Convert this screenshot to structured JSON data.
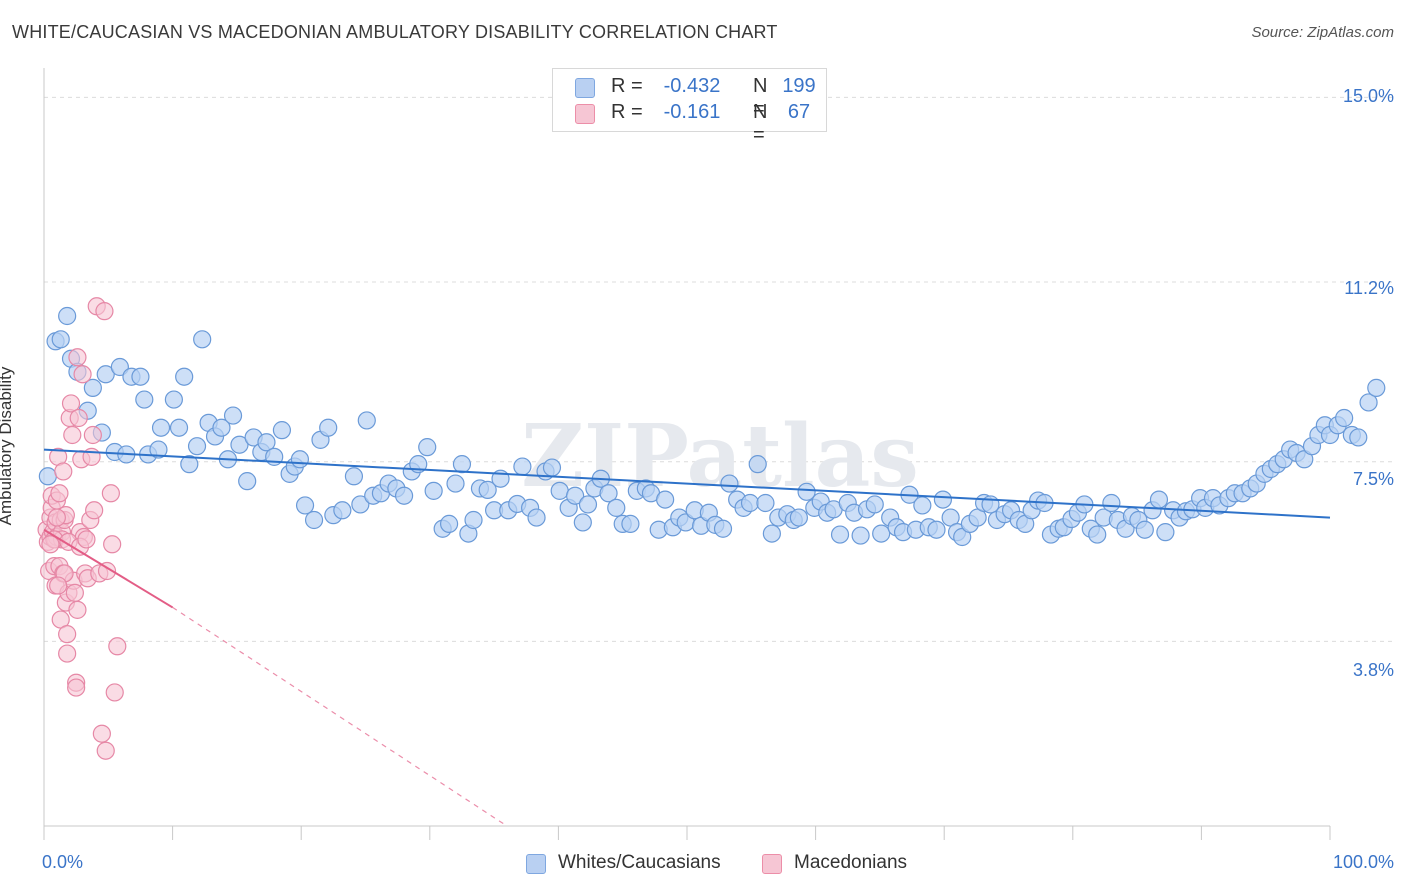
{
  "title": "WHITE/CAUCASIAN VS MACEDONIAN AMBULATORY DISABILITY CORRELATION CHART",
  "source": "Source: ZipAtlas.com",
  "legend": {
    "r_label": "R =",
    "n_label": "N =",
    "rows": [
      {
        "r": "-0.432",
        "n": "199",
        "color": "#7fa7e0",
        "fill": "#b9d0f2"
      },
      {
        "r": "-0.161",
        "n": "67",
        "color": "#ec8ea8",
        "fill": "#f6c6d4"
      }
    ]
  },
  "watermark": "ZIPatlas",
  "colors": {
    "blue": "#6a9ad8",
    "blue_fill": "#b8d1f3",
    "pink": "#e688a6",
    "pink_fill": "#f7c4d3",
    "blue_line": "#2e72c9",
    "pink_line": "#e35d86",
    "tick": "#3a74c8"
  },
  "chart_data": {
    "type": "scatter",
    "title": "WHITE/CAUCASIAN VS MACEDONIAN AMBULATORY DISABILITY CORRELATION CHART",
    "ylabel": "Ambulatory Disability",
    "xlabel": "",
    "xlim": [
      0,
      100
    ],
    "ylim": [
      0,
      15.4
    ],
    "x_ticks": [
      "0.0%",
      "100.0%"
    ],
    "y_ticks": [
      {
        "value": 3.8,
        "label": "3.8%"
      },
      {
        "value": 7.5,
        "label": "7.5%"
      },
      {
        "value": 11.2,
        "label": "11.2%"
      },
      {
        "value": 15.0,
        "label": "15.0%"
      }
    ],
    "grid": true,
    "legend_position": "bottom",
    "series": [
      {
        "name": "Whites/Caucasians",
        "r": -0.432,
        "n": 199,
        "trend": {
          "x": [
            0,
            100
          ],
          "y": [
            7.75,
            6.35
          ]
        },
        "points": [
          [
            0.3,
            7.2
          ],
          [
            0.9,
            9.98
          ],
          [
            1.3,
            10.02
          ],
          [
            1.8,
            10.5
          ],
          [
            2.1,
            9.62
          ],
          [
            2.6,
            9.35
          ],
          [
            3.4,
            8.55
          ],
          [
            3.8,
            9.02
          ],
          [
            4.5,
            8.1
          ],
          [
            4.8,
            9.3
          ],
          [
            5.5,
            7.7
          ],
          [
            5.9,
            9.45
          ],
          [
            6.4,
            7.65
          ],
          [
            6.8,
            9.25
          ],
          [
            7.5,
            9.25
          ],
          [
            7.8,
            8.78
          ],
          [
            8.1,
            7.65
          ],
          [
            8.9,
            7.75
          ],
          [
            9.1,
            8.2
          ],
          [
            10.1,
            8.78
          ],
          [
            10.5,
            8.2
          ],
          [
            10.9,
            9.25
          ],
          [
            11.3,
            7.45
          ],
          [
            11.9,
            7.82
          ],
          [
            12.3,
            10.02
          ],
          [
            12.8,
            8.3
          ],
          [
            13.3,
            8.02
          ],
          [
            13.8,
            8.2
          ],
          [
            14.3,
            7.55
          ],
          [
            14.7,
            8.45
          ],
          [
            15.2,
            7.85
          ],
          [
            15.8,
            7.1
          ],
          [
            16.3,
            8.0
          ],
          [
            16.9,
            7.7
          ],
          [
            17.3,
            7.9
          ],
          [
            17.9,
            7.6
          ],
          [
            18.5,
            8.15
          ],
          [
            19.1,
            7.25
          ],
          [
            19.5,
            7.4
          ],
          [
            19.9,
            7.55
          ],
          [
            20.3,
            6.6
          ],
          [
            21.0,
            6.3
          ],
          [
            21.5,
            7.95
          ],
          [
            22.1,
            8.2
          ],
          [
            22.5,
            6.4
          ],
          [
            23.2,
            6.5
          ],
          [
            24.1,
            7.2
          ],
          [
            24.6,
            6.62
          ],
          [
            25.1,
            8.35
          ],
          [
            25.6,
            6.8
          ],
          [
            26.2,
            6.85
          ],
          [
            26.8,
            7.05
          ],
          [
            27.4,
            6.95
          ],
          [
            28.0,
            6.8
          ],
          [
            28.6,
            7.3
          ],
          [
            29.1,
            7.45
          ],
          [
            29.8,
            7.8
          ],
          [
            30.3,
            6.9
          ],
          [
            31.0,
            6.12
          ],
          [
            31.5,
            6.22
          ],
          [
            32.0,
            7.05
          ],
          [
            32.5,
            7.45
          ],
          [
            33.0,
            6.02
          ],
          [
            33.4,
            6.3
          ],
          [
            33.9,
            6.95
          ],
          [
            34.5,
            6.92
          ],
          [
            35.0,
            6.5
          ],
          [
            35.5,
            7.15
          ],
          [
            36.1,
            6.5
          ],
          [
            36.8,
            6.63
          ],
          [
            37.2,
            7.4
          ],
          [
            37.8,
            6.55
          ],
          [
            38.3,
            6.35
          ],
          [
            39.0,
            7.3
          ],
          [
            39.5,
            7.38
          ],
          [
            40.1,
            6.9
          ],
          [
            40.8,
            6.55
          ],
          [
            41.3,
            6.8
          ],
          [
            41.9,
            6.25
          ],
          [
            42.3,
            6.62
          ],
          [
            42.8,
            6.95
          ],
          [
            43.3,
            7.15
          ],
          [
            43.9,
            6.85
          ],
          [
            44.5,
            6.55
          ],
          [
            45.0,
            6.22
          ],
          [
            45.6,
            6.22
          ],
          [
            46.1,
            6.9
          ],
          [
            46.8,
            6.95
          ],
          [
            47.2,
            6.85
          ],
          [
            47.8,
            6.1
          ],
          [
            48.3,
            6.72
          ],
          [
            48.9,
            6.15
          ],
          [
            49.4,
            6.35
          ],
          [
            49.9,
            6.25
          ],
          [
            50.6,
            6.5
          ],
          [
            51.1,
            6.18
          ],
          [
            51.7,
            6.45
          ],
          [
            52.2,
            6.2
          ],
          [
            52.8,
            6.12
          ],
          [
            53.3,
            7.05
          ],
          [
            53.9,
            6.72
          ],
          [
            54.4,
            6.55
          ],
          [
            54.9,
            6.65
          ],
          [
            55.5,
            7.45
          ],
          [
            56.1,
            6.65
          ],
          [
            56.6,
            6.02
          ],
          [
            57.1,
            6.35
          ],
          [
            57.8,
            6.42
          ],
          [
            58.3,
            6.3
          ],
          [
            58.7,
            6.35
          ],
          [
            59.3,
            6.88
          ],
          [
            59.9,
            6.55
          ],
          [
            60.4,
            6.68
          ],
          [
            60.9,
            6.45
          ],
          [
            61.4,
            6.52
          ],
          [
            61.9,
            6.0
          ],
          [
            62.5,
            6.65
          ],
          [
            63.0,
            6.45
          ],
          [
            63.5,
            5.98
          ],
          [
            64.0,
            6.52
          ],
          [
            64.6,
            6.62
          ],
          [
            65.1,
            6.02
          ],
          [
            65.8,
            6.35
          ],
          [
            66.3,
            6.15
          ],
          [
            66.8,
            6.05
          ],
          [
            67.3,
            6.82
          ],
          [
            67.8,
            6.1
          ],
          [
            68.3,
            6.6
          ],
          [
            68.8,
            6.15
          ],
          [
            69.4,
            6.1
          ],
          [
            69.9,
            6.72
          ],
          [
            70.5,
            6.35
          ],
          [
            71.0,
            6.05
          ],
          [
            71.4,
            5.95
          ],
          [
            72.0,
            6.22
          ],
          [
            72.6,
            6.35
          ],
          [
            73.1,
            6.65
          ],
          [
            73.6,
            6.62
          ],
          [
            74.1,
            6.3
          ],
          [
            74.7,
            6.42
          ],
          [
            75.2,
            6.5
          ],
          [
            75.8,
            6.3
          ],
          [
            76.3,
            6.22
          ],
          [
            76.8,
            6.5
          ],
          [
            77.3,
            6.7
          ],
          [
            77.8,
            6.65
          ],
          [
            78.3,
            6.0
          ],
          [
            78.9,
            6.12
          ],
          [
            79.3,
            6.15
          ],
          [
            79.9,
            6.32
          ],
          [
            80.4,
            6.45
          ],
          [
            80.9,
            6.62
          ],
          [
            81.4,
            6.12
          ],
          [
            81.9,
            6.0
          ],
          [
            82.4,
            6.35
          ],
          [
            83.0,
            6.65
          ],
          [
            83.5,
            6.3
          ],
          [
            84.1,
            6.12
          ],
          [
            84.6,
            6.38
          ],
          [
            85.1,
            6.3
          ],
          [
            85.6,
            6.1
          ],
          [
            86.2,
            6.5
          ],
          [
            86.7,
            6.72
          ],
          [
            87.2,
            6.05
          ],
          [
            87.8,
            6.5
          ],
          [
            88.3,
            6.35
          ],
          [
            88.8,
            6.48
          ],
          [
            89.3,
            6.52
          ],
          [
            89.9,
            6.75
          ],
          [
            90.3,
            6.55
          ],
          [
            90.9,
            6.75
          ],
          [
            91.4,
            6.6
          ],
          [
            92.1,
            6.75
          ],
          [
            92.6,
            6.85
          ],
          [
            93.2,
            6.85
          ],
          [
            93.8,
            6.95
          ],
          [
            94.3,
            7.05
          ],
          [
            94.9,
            7.25
          ],
          [
            95.4,
            7.35
          ],
          [
            95.9,
            7.45
          ],
          [
            96.4,
            7.55
          ],
          [
            96.9,
            7.75
          ],
          [
            97.4,
            7.68
          ],
          [
            98.0,
            7.55
          ],
          [
            98.6,
            7.82
          ],
          [
            99.1,
            8.05
          ],
          [
            99.6,
            8.25
          ],
          [
            100.0,
            8.05
          ],
          [
            100.6,
            8.25
          ],
          [
            101.1,
            8.4
          ],
          [
            101.7,
            8.05
          ],
          [
            102.2,
            8.0
          ],
          [
            103.0,
            8.72
          ],
          [
            103.6,
            9.02
          ]
        ]
      },
      {
        "name": "Macedonians",
        "r": -0.161,
        "n": 67,
        "trend": {
          "x": [
            0,
            10
          ],
          "y": [
            6.1,
            4.5
          ]
        },
        "trend_dashed": {
          "x": [
            10,
            36
          ],
          "y": [
            4.5,
            0.0
          ]
        },
        "points": [
          [
            0.2,
            6.1
          ],
          [
            0.3,
            5.85
          ],
          [
            0.4,
            5.25
          ],
          [
            0.5,
            6.35
          ],
          [
            0.5,
            5.95
          ],
          [
            0.6,
            6.55
          ],
          [
            0.6,
            6.8
          ],
          [
            0.7,
            6.05
          ],
          [
            0.8,
            5.35
          ],
          [
            0.9,
            6.25
          ],
          [
            0.9,
            5.9
          ],
          [
            0.9,
            4.95
          ],
          [
            1.0,
            6.7
          ],
          [
            1.0,
            5.95
          ],
          [
            1.1,
            7.6
          ],
          [
            1.2,
            6.85
          ],
          [
            1.2,
            5.35
          ],
          [
            1.3,
            4.25
          ],
          [
            1.3,
            6.3
          ],
          [
            1.4,
            6.05
          ],
          [
            1.4,
            5.9
          ],
          [
            1.5,
            7.3
          ],
          [
            1.5,
            5.2
          ],
          [
            1.6,
            6.3
          ],
          [
            1.7,
            6.4
          ],
          [
            1.7,
            4.6
          ],
          [
            1.8,
            3.95
          ],
          [
            1.8,
            3.55
          ],
          [
            1.9,
            4.8
          ],
          [
            2.0,
            8.4
          ],
          [
            2.1,
            8.7
          ],
          [
            2.2,
            8.05
          ],
          [
            2.3,
            5.05
          ],
          [
            2.4,
            4.8
          ],
          [
            2.5,
            2.95
          ],
          [
            2.5,
            2.85
          ],
          [
            2.6,
            9.65
          ],
          [
            2.7,
            8.4
          ],
          [
            2.8,
            6.05
          ],
          [
            2.9,
            7.55
          ],
          [
            3.0,
            9.3
          ],
          [
            3.1,
            5.95
          ],
          [
            3.2,
            5.2
          ],
          [
            3.4,
            5.1
          ],
          [
            3.6,
            6.3
          ],
          [
            3.7,
            7.6
          ],
          [
            3.8,
            8.05
          ],
          [
            3.9,
            6.5
          ],
          [
            4.1,
            10.7
          ],
          [
            4.3,
            5.2
          ],
          [
            4.5,
            1.9
          ],
          [
            4.7,
            10.6
          ],
          [
            4.8,
            1.55
          ],
          [
            4.9,
            5.25
          ],
          [
            5.2,
            6.85
          ],
          [
            5.3,
            5.8
          ],
          [
            5.5,
            2.75
          ],
          [
            5.7,
            3.7
          ],
          [
            0.8,
            5.9
          ],
          [
            1.9,
            5.85
          ],
          [
            2.8,
            5.75
          ],
          [
            1.0,
            6.35
          ],
          [
            1.6,
            5.2
          ],
          [
            2.6,
            4.45
          ],
          [
            0.5,
            5.8
          ],
          [
            3.3,
            5.9
          ],
          [
            1.1,
            4.95
          ]
        ]
      }
    ]
  },
  "bottom_legend": [
    "Whites/Caucasians",
    "Macedonians"
  ],
  "y_axis_ticks": [
    "15.0%",
    "11.2%",
    "7.5%",
    "3.8%"
  ],
  "x_axis_ticks": [
    "0.0%",
    "100.0%"
  ],
  "y_axis_label": "Ambulatory Disability"
}
